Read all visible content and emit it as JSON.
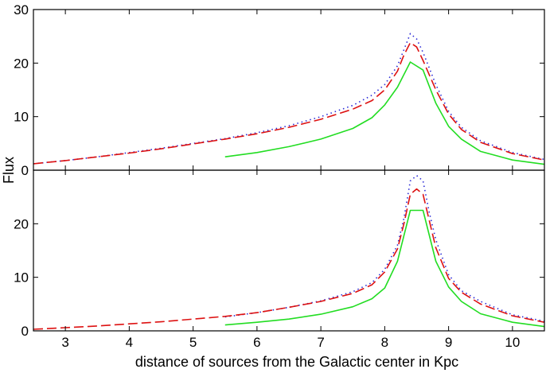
{
  "chart_data": {
    "type": "line",
    "xlabel": "distance of sources from the Galactic center in Kpc",
    "ylabel": "Flux",
    "xlim": [
      2.5,
      10.5
    ],
    "xticks": [
      3,
      4,
      5,
      6,
      7,
      8,
      9,
      10
    ],
    "colors": {
      "dotted": "#2a2ad6",
      "dashed": "#dd1111",
      "solid": "#22dd22"
    },
    "panels": [
      {
        "name": "top",
        "ylim": [
          0,
          30
        ],
        "yticks": [
          0,
          10,
          20,
          30
        ],
        "series": [
          {
            "name": "dotted",
            "style": "dotted",
            "x": [
              2.5,
              3,
              3.5,
              4,
              4.5,
              5,
              5.5,
              6,
              6.5,
              7,
              7.5,
              7.8,
              8.0,
              8.2,
              8.3,
              8.4,
              8.5,
              8.6,
              8.8,
              9,
              9.2,
              9.5,
              10,
              10.5
            ],
            "y": [
              1.2,
              1.8,
              2.5,
              3.3,
              4.1,
              5,
              5.9,
              7,
              8.3,
              10,
              12.1,
              14,
              16,
              19.5,
              22.5,
              25.5,
              24.5,
              22,
              16,
              11,
              8,
              5.5,
              3.3,
              2
            ]
          },
          {
            "name": "dashed",
            "style": "dashed",
            "x": [
              2.5,
              3,
              3.5,
              4,
              4.5,
              5,
              5.5,
              6,
              6.5,
              7,
              7.5,
              7.8,
              8.0,
              8.2,
              8.3,
              8.4,
              8.5,
              8.6,
              8.8,
              9,
              9.2,
              9.5,
              10,
              10.5
            ],
            "y": [
              1.2,
              1.8,
              2.5,
              3.2,
              4,
              4.9,
              5.8,
              6.8,
              8,
              9.5,
              11.4,
              13,
              15,
              18.5,
              21.5,
              23.8,
              23,
              20.5,
              15,
              10.5,
              7.6,
              5.2,
              3.1,
              1.9
            ]
          },
          {
            "name": "solid",
            "style": "solid",
            "x": [
              5.5,
              6,
              6.5,
              7,
              7.5,
              7.8,
              8,
              8.2,
              8.4,
              8.6,
              8.8,
              9,
              9.2,
              9.5,
              10,
              10.5
            ],
            "y": [
              2.5,
              3.3,
              4.4,
              5.8,
              7.8,
              9.8,
              12.2,
              15.5,
              20.2,
              18.7,
              12.5,
              8.2,
              5.8,
              3.5,
              1.9,
              1.1
            ]
          }
        ]
      },
      {
        "name": "bottom",
        "ylim": [
          0,
          30
        ],
        "yticks": [
          0,
          10,
          20
        ],
        "series": [
          {
            "name": "dotted",
            "style": "dotted",
            "x": [
              5.5,
              6,
              6.5,
              7,
              7.5,
              7.8,
              8,
              8.2,
              8.3,
              8.4,
              8.5,
              8.6,
              8.7,
              8.8,
              9,
              9.2,
              9.5,
              10,
              10.5
            ],
            "y": [
              2.6,
              3.4,
              4.4,
              5.6,
              7.3,
              9,
              11.5,
              16,
              21,
              28,
              29,
              28,
              22,
              17,
              10.5,
              7.5,
              5.5,
              3,
              1.8
            ]
          },
          {
            "name": "dashed",
            "style": "dashed",
            "x": [
              2.5,
              3,
              3.5,
              4,
              4.5,
              5,
              5.5,
              6,
              6.5,
              7,
              7.5,
              7.8,
              8,
              8.2,
              8.3,
              8.4,
              8.5,
              8.6,
              8.7,
              8.8,
              9,
              9.2,
              9.5,
              10,
              10.5
            ],
            "y": [
              0.3,
              0.6,
              0.9,
              1.3,
              1.7,
              2.2,
              2.7,
              3.4,
              4.4,
              5.5,
              7,
              8.6,
              11,
              15.3,
              20,
              25.5,
              26.5,
              25.5,
              20.5,
              15.5,
              9.8,
              7.2,
              5,
              2.8,
              1.6
            ]
          },
          {
            "name": "solid",
            "style": "solid",
            "x": [
              5.5,
              6,
              6.5,
              7,
              7.5,
              7.8,
              8,
              8.2,
              8.4,
              8.6,
              8.8,
              9,
              9.2,
              9.5,
              10,
              10.5
            ],
            "y": [
              1.1,
              1.6,
              2.2,
              3.1,
              4.5,
              6,
              8,
              13,
              22.5,
              22.5,
              13,
              8.2,
              5.5,
              3.2,
              1.6,
              0.8
            ]
          }
        ]
      }
    ]
  }
}
